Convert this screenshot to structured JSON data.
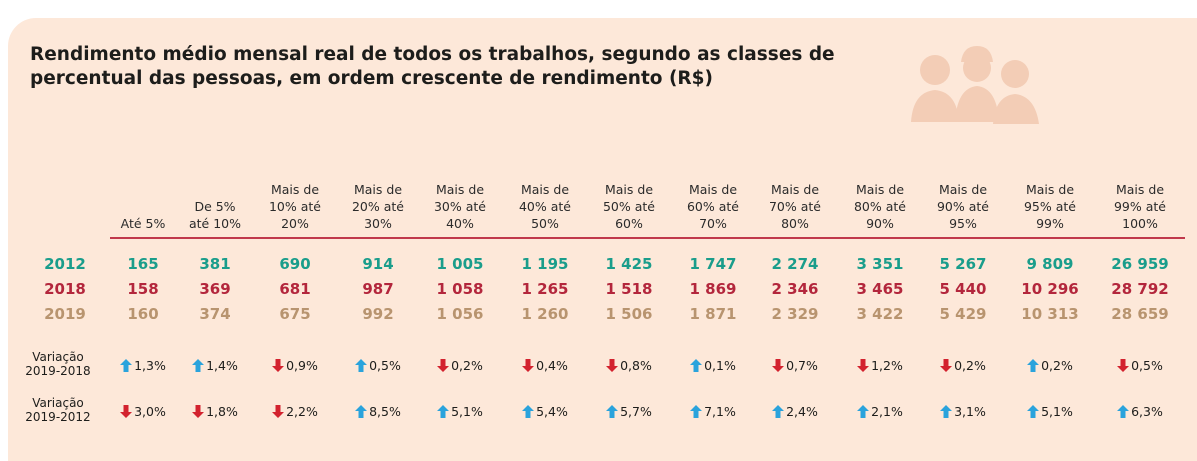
{
  "title": [
    "Rendimento médio mensal real de todos os trabalhos, segundo as classes de",
    "percentual das pessoas, em ordem crescente de rendimento (R$)"
  ],
  "columns": [
    [
      "Até 5%"
    ],
    [
      "De 5%",
      "até 10%"
    ],
    [
      "Mais de",
      "10% até",
      "20%"
    ],
    [
      "Mais de",
      "20% até",
      "30%"
    ],
    [
      "Mais de",
      "30% até",
      "40%"
    ],
    [
      "Mais de",
      "40% até",
      "50%"
    ],
    [
      "Mais de",
      "50% até",
      "60%"
    ],
    [
      "Mais de",
      "60% até",
      "70%"
    ],
    [
      "Mais de",
      "70% até",
      "80%"
    ],
    [
      "Mais de",
      "80% até",
      "90%"
    ],
    [
      "Mais de",
      "90% até",
      "95%"
    ],
    [
      "Mais de",
      "95% até",
      "99%"
    ],
    [
      "Mais de",
      "99% até",
      "100%"
    ]
  ],
  "rows": [
    {
      "label": "2012",
      "color": "#1a9d8b",
      "values": [
        "165",
        "381",
        "690",
        "914",
        "1 005",
        "1 195",
        "1 425",
        "1 747",
        "2 274",
        "3 351",
        "5 267",
        "9 809",
        "26 959"
      ]
    },
    {
      "label": "2018",
      "color": "#b3263c",
      "values": [
        "158",
        "369",
        "681",
        "987",
        "1 058",
        "1 265",
        "1 518",
        "1 869",
        "2 346",
        "3 465",
        "5 440",
        "10 296",
        "28 792"
      ]
    },
    {
      "label": "2019",
      "color": "#b8946f",
      "values": [
        "160",
        "374",
        "675",
        "992",
        "1 056",
        "1 260",
        "1 506",
        "1 871",
        "2 329",
        "3 422",
        "5 429",
        "10 313",
        "28 659"
      ]
    }
  ],
  "variations": [
    {
      "label": [
        "Variação",
        "2019-2018"
      ],
      "values": [
        {
          "text": "1,3%",
          "direction": "up"
        },
        {
          "text": "1,4%",
          "direction": "up"
        },
        {
          "text": "0,9%",
          "direction": "down"
        },
        {
          "text": "0,5%",
          "direction": "up"
        },
        {
          "text": "0,2%",
          "direction": "down"
        },
        {
          "text": "0,4%",
          "direction": "down"
        },
        {
          "text": "0,8%",
          "direction": "down"
        },
        {
          "text": "0,1%",
          "direction": "up"
        },
        {
          "text": "0,7%",
          "direction": "down"
        },
        {
          "text": "1,2%",
          "direction": "down"
        },
        {
          "text": "0,2%",
          "direction": "down"
        },
        {
          "text": "0,2%",
          "direction": "up"
        },
        {
          "text": "0,5%",
          "direction": "down"
        }
      ]
    },
    {
      "label": [
        "Variação",
        "2019-2012"
      ],
      "values": [
        {
          "text": "3,0%",
          "direction": "down"
        },
        {
          "text": "1,8%",
          "direction": "down"
        },
        {
          "text": "2,2%",
          "direction": "down"
        },
        {
          "text": "8,5%",
          "direction": "up"
        },
        {
          "text": "5,1%",
          "direction": "up"
        },
        {
          "text": "5,4%",
          "direction": "up"
        },
        {
          "text": "5,7%",
          "direction": "up"
        },
        {
          "text": "7,1%",
          "direction": "up"
        },
        {
          "text": "2,4%",
          "direction": "up"
        },
        {
          "text": "2,1%",
          "direction": "up"
        },
        {
          "text": "3,1%",
          "direction": "up"
        },
        {
          "text": "5,1%",
          "direction": "up"
        },
        {
          "text": "6,3%",
          "direction": "up"
        }
      ]
    }
  ]
}
